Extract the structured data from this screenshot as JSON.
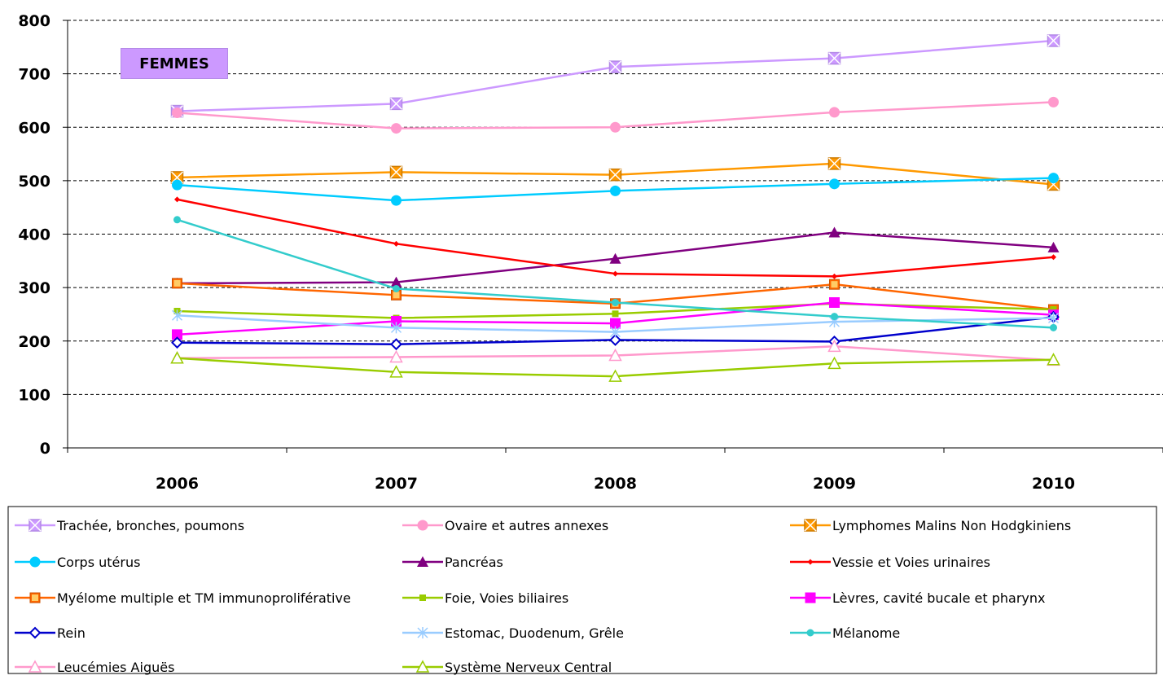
{
  "chart_data": {
    "type": "line",
    "title": "FEMMES",
    "categories": [
      "2006",
      "2007",
      "2008",
      "2009",
      "2010"
    ],
    "ylim": [
      0,
      800
    ],
    "yticks": [
      0,
      100,
      200,
      300,
      400,
      500,
      600,
      700,
      800
    ],
    "grid": true,
    "legend_position": "bottom",
    "series": [
      {
        "name": "Trachée, bronches, poumons",
        "color": "#cc99ff",
        "marker": "square-x",
        "values": [
          630,
          644,
          713,
          729,
          762
        ]
      },
      {
        "name": "Ovaire et autres annexes",
        "color": "#ff99cc",
        "marker": "circle",
        "values": [
          627,
          598,
          600,
          628,
          647
        ]
      },
      {
        "name": "Lymphomes Malins Non Hodgkiniens",
        "color": "#ff9900",
        "marker": "square-x",
        "values": [
          506,
          516,
          511,
          532,
          493
        ]
      },
      {
        "name": "Corps utérus",
        "color": "#00ccff",
        "marker": "circle",
        "values": [
          492,
          463,
          481,
          494,
          505
        ]
      },
      {
        "name": "Pancréas",
        "color": "#800080",
        "marker": "triangle",
        "values": [
          308,
          310,
          354,
          403,
          375
        ]
      },
      {
        "name": "Vessie et Voies urinaires",
        "color": "#ff0000",
        "marker": "diamond-small",
        "values": [
          465,
          382,
          326,
          321,
          357
        ]
      },
      {
        "name": "Myélome multiple et TM immunoproliférative",
        "color": "#ff6600",
        "marker": "square",
        "values": [
          308,
          286,
          270,
          306,
          259
        ]
      },
      {
        "name": "Foie, Voies biliaires",
        "color": "#99cc00",
        "marker": "square-small",
        "values": [
          256,
          243,
          251,
          270,
          259
        ]
      },
      {
        "name": "Lèvres, cavité bucale et pharynx",
        "color": "#ff00ff",
        "marker": "square",
        "values": [
          212,
          237,
          233,
          272,
          249
        ]
      },
      {
        "name": "Rein",
        "color": "#0000cc",
        "marker": "diamond",
        "values": [
          197,
          194,
          202,
          199,
          245
        ]
      },
      {
        "name": "Estomac, Duodenum, Grêle",
        "color": "#99ccff",
        "marker": "star",
        "values": [
          248,
          225,
          217,
          236,
          243
        ]
      },
      {
        "name": "Mélanome",
        "color": "#33cccc",
        "marker": "circle-small",
        "values": [
          427,
          298,
          272,
          246,
          225
        ]
      },
      {
        "name": "Leucémies Aiguës",
        "color": "#ff99cc",
        "marker": "triangle-open",
        "values": [
          168,
          170,
          173,
          190,
          164
        ]
      },
      {
        "name": "Système Nerveux Central",
        "color": "#99cc00",
        "marker": "triangle-open",
        "values": [
          168,
          142,
          134,
          158,
          165
        ]
      }
    ]
  }
}
